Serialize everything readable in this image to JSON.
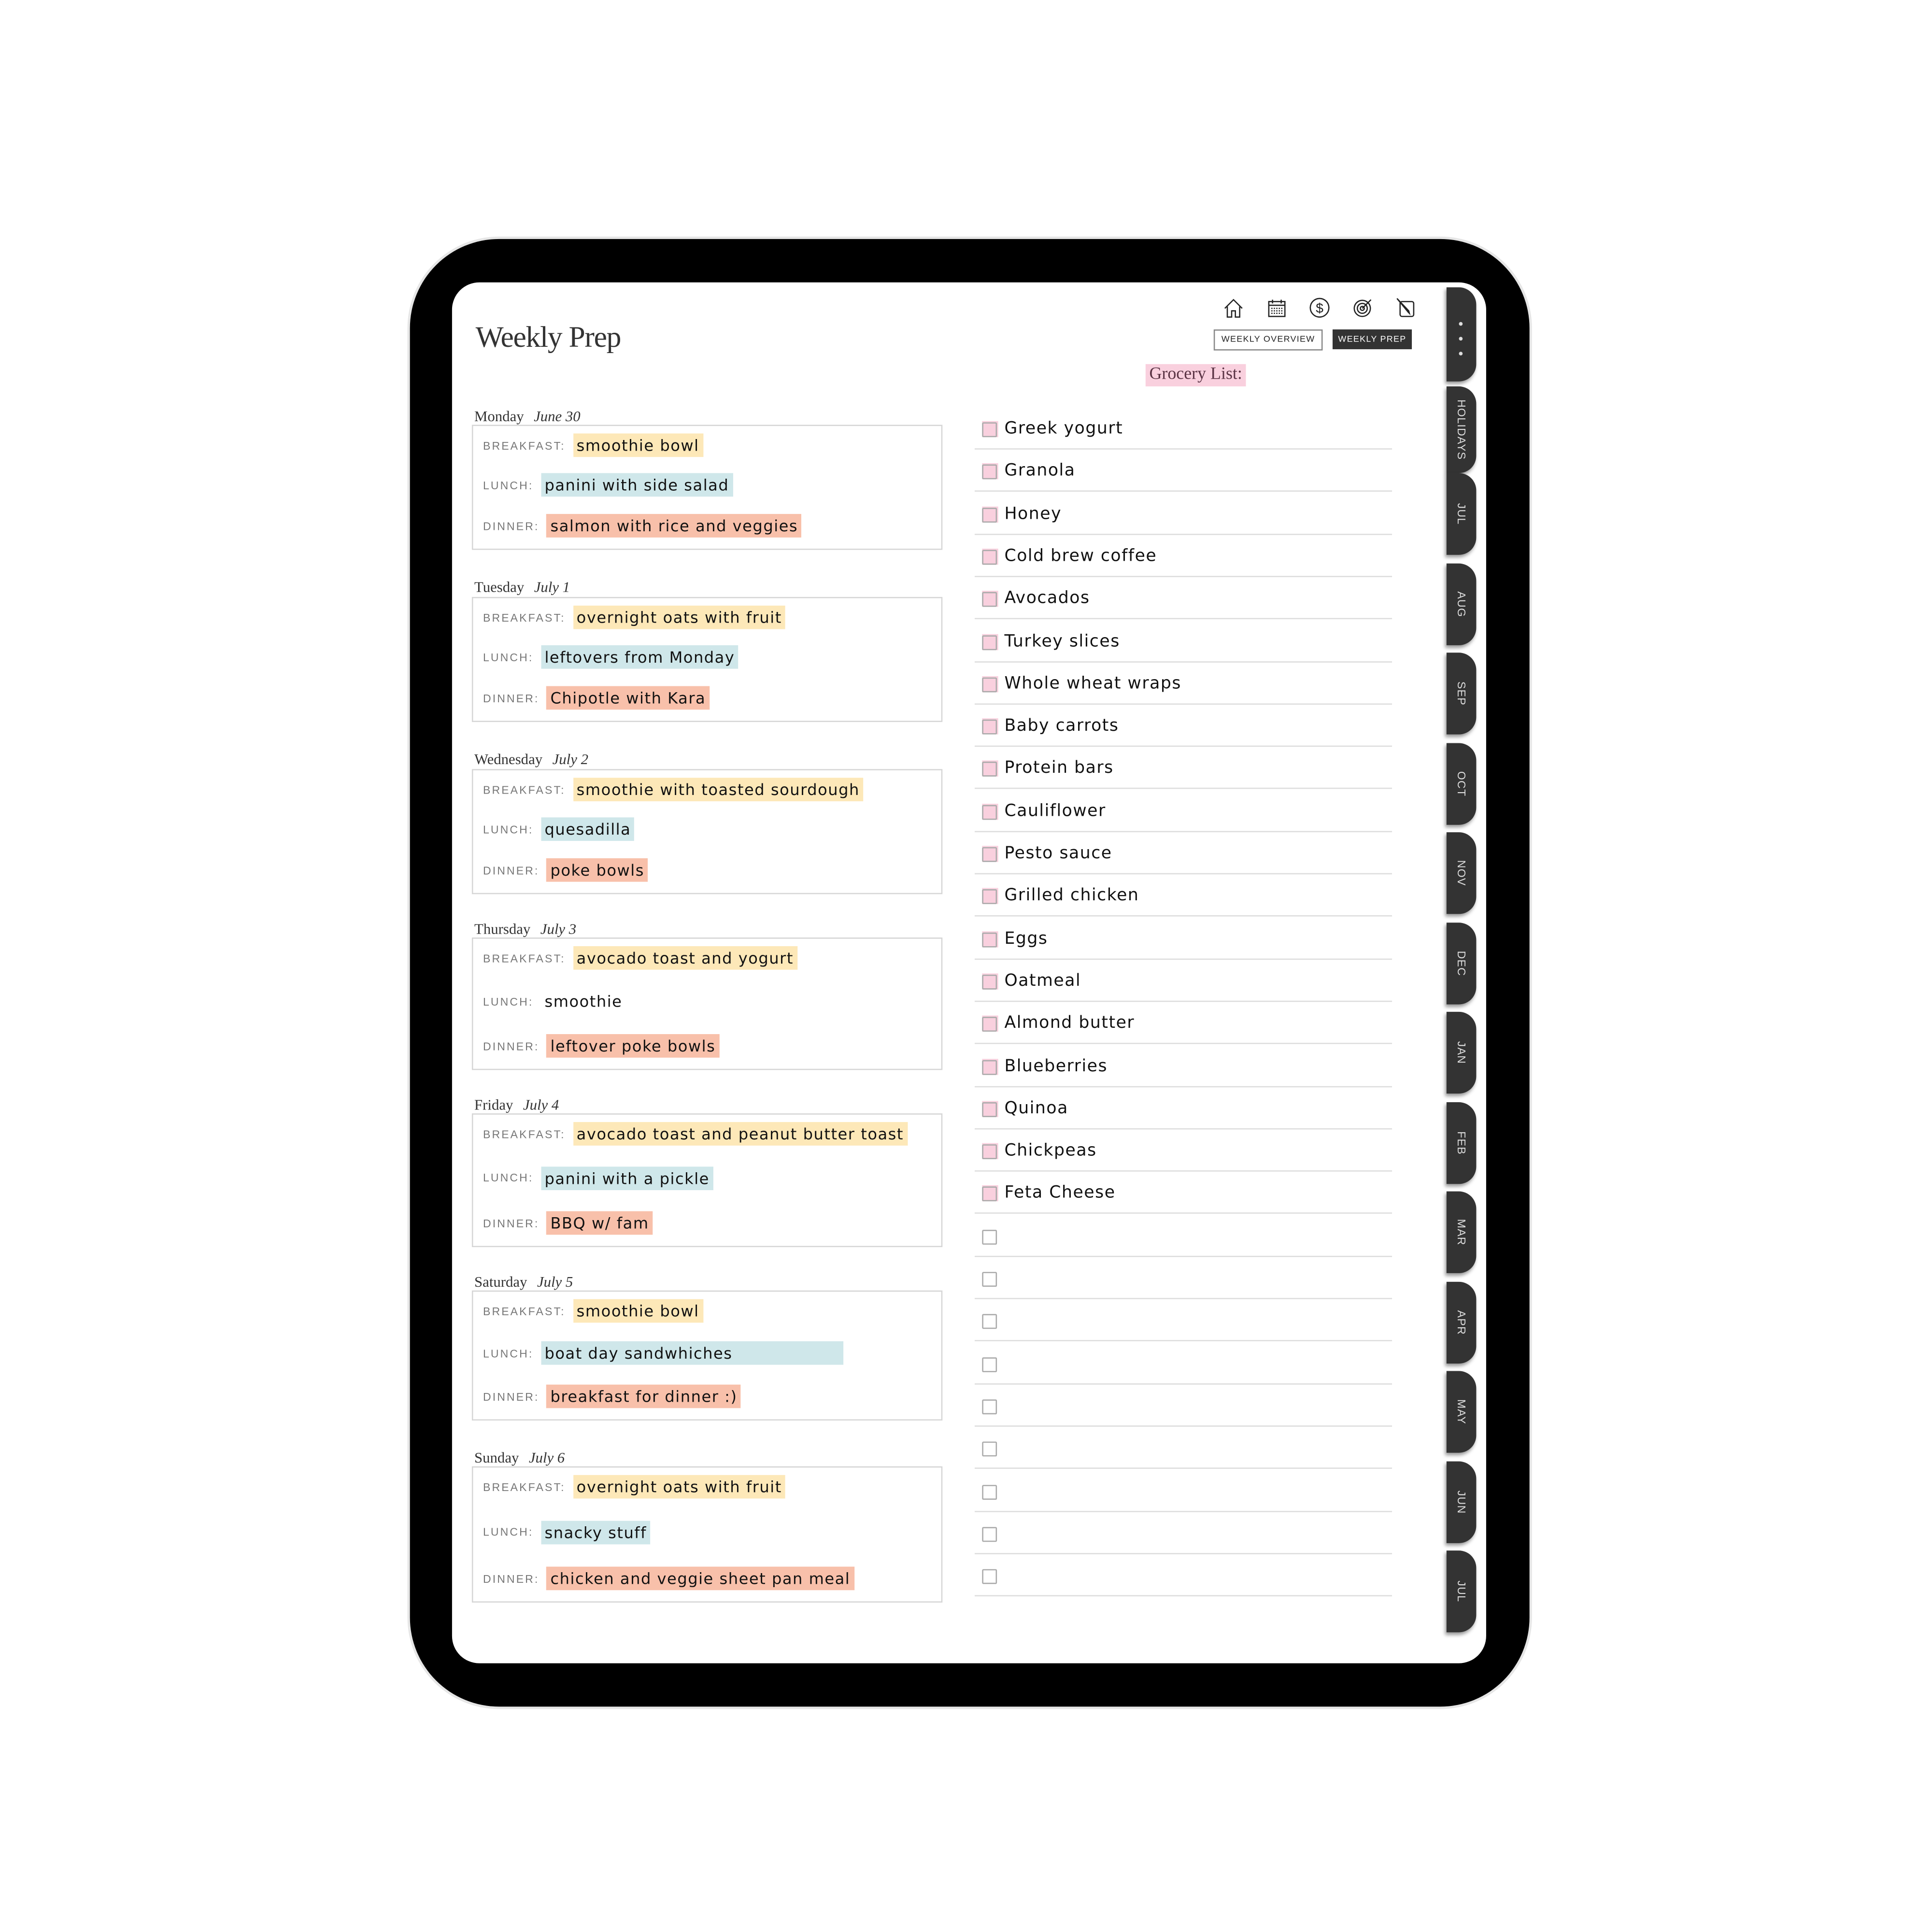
{
  "header": {
    "title": "Weekly Prep",
    "nav_icons": [
      "home-icon",
      "calendar-icon",
      "dollar-icon",
      "target-icon",
      "notepad-pencil-icon"
    ],
    "weekly_overview": "WEEKLY OVERVIEW",
    "weekly_prep": "WEEKLY PREP"
  },
  "meal_labels": {
    "breakfast": "BREAKFAST:",
    "lunch": "LUNCH:",
    "dinner": "DINNER:"
  },
  "colors": {
    "breakfast": "#fde8b8",
    "lunch": "#cfe7ea",
    "dinner": "#f8c0aa",
    "grocery": "#f9d0de"
  },
  "days": [
    {
      "day": "Monday",
      "date": "June 30",
      "breakfast": "smoothie bowl",
      "lunch": "panini with side salad",
      "dinner": "salmon with rice and veggies"
    },
    {
      "day": "Tuesday",
      "date": "July 1",
      "breakfast": "overnight oats with fruit",
      "lunch": "leftovers from Monday",
      "dinner": "Chipotle with Kara"
    },
    {
      "day": "Wednesday",
      "date": "July 2",
      "breakfast": "smoothie with toasted sourdough",
      "lunch": "quesadilla",
      "dinner": "poke bowls"
    },
    {
      "day": "Thursday",
      "date": "July 3",
      "breakfast": "avocado toast and yogurt",
      "lunch": "smoothie",
      "dinner": "leftover poke bowls"
    },
    {
      "day": "Friday",
      "date": "July 4",
      "breakfast": "avocado toast and peanut butter toast",
      "lunch": "panini with a pickle",
      "dinner": "BBQ w/ fam"
    },
    {
      "day": "Saturday",
      "date": "July 5",
      "breakfast": "smoothie bowl",
      "lunch": "boat day sandwhiches",
      "dinner": "breakfast for dinner :)"
    },
    {
      "day": "Sunday",
      "date": "July 6",
      "breakfast": "overnight oats with fruit",
      "lunch": "snacky stuff",
      "dinner": "chicken and veggie sheet pan meal"
    }
  ],
  "grocery": {
    "title": "Grocery List:",
    "items": [
      "Greek yogurt",
      "Granola",
      "Honey",
      "Cold brew coffee",
      "Avocados",
      "Turkey slices",
      "Whole wheat wraps",
      "Baby carrots",
      "Protein bars",
      "Cauliflower",
      "Pesto sauce",
      "Grilled chicken",
      "Eggs",
      "Oatmeal",
      "Almond butter",
      "Blueberries",
      "Quinoa",
      "Chickpeas",
      "Feta Cheese",
      "",
      "",
      "",
      "",
      "",
      "",
      "",
      "",
      ""
    ]
  },
  "tabs": [
    "HOLIDAYS",
    "JUL",
    "AUG",
    "SEP",
    "OCT",
    "NOV",
    "DEC",
    "JAN",
    "FEB",
    "MAR",
    "APR",
    "MAY",
    "JUN",
    "JUL"
  ]
}
